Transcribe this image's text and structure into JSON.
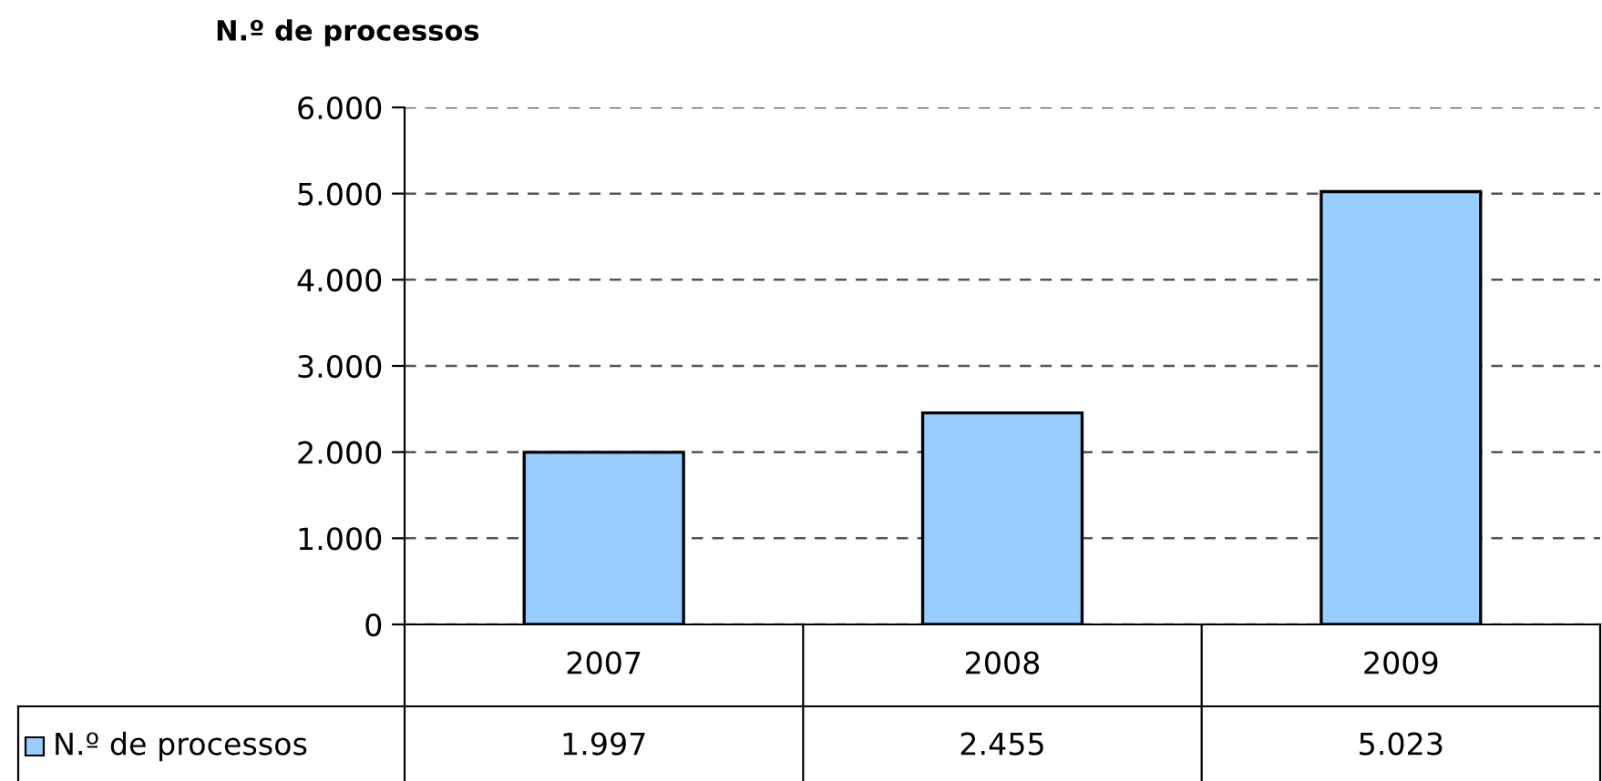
{
  "chart_data": {
    "type": "bar",
    "title": "N.º de processos",
    "categories": [
      "2007",
      "2008",
      "2009"
    ],
    "series": [
      {
        "name": "N.º de processos",
        "color": "#99ccff",
        "values": [
          1997,
          2455,
          5023
        ],
        "value_labels": [
          "1.997",
          "2.455",
          "5.023"
        ]
      }
    ],
    "ylim": [
      0,
      6000
    ],
    "yticks": [
      {
        "value": 0,
        "label": "0"
      },
      {
        "value": 1000,
        "label": "1.000"
      },
      {
        "value": 2000,
        "label": "2.000"
      },
      {
        "value": 3000,
        "label": "3.000"
      },
      {
        "value": 4000,
        "label": "4.000"
      },
      {
        "value": 5000,
        "label": "5.000"
      },
      {
        "value": 6000,
        "label": "6.000"
      }
    ],
    "grid": "y",
    "legend": "bottom"
  }
}
